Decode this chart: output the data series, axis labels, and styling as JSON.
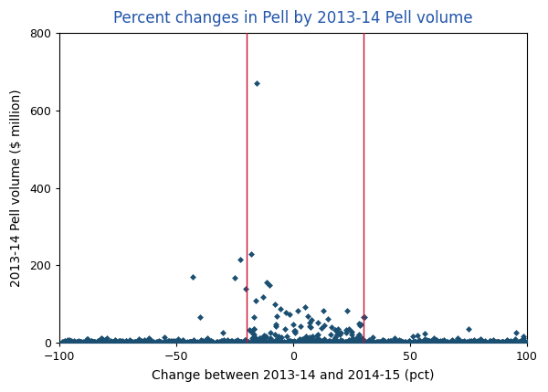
{
  "title": "Percent changes in Pell by 2013-14 Pell volume",
  "xlabel": "Change between 2013-14 and 2014-15 (pct)",
  "ylabel": "2013-14 Pell volume ($ million)",
  "xlim": [
    -100,
    100
  ],
  "ylim": [
    0,
    800
  ],
  "xticks": [
    -100,
    -50,
    0,
    50,
    100
  ],
  "yticks": [
    0,
    200,
    400,
    600,
    800
  ],
  "vline1_x": -20,
  "vline2_x": 30,
  "vline_color": "#CC1133",
  "marker_color": "#1B4F72",
  "marker": "D",
  "marker_size": 3.5,
  "background_color": "#ffffff",
  "title_color": "#2255AA",
  "title_fontsize": 12,
  "axis_fontsize": 10,
  "tick_fontsize": 9
}
